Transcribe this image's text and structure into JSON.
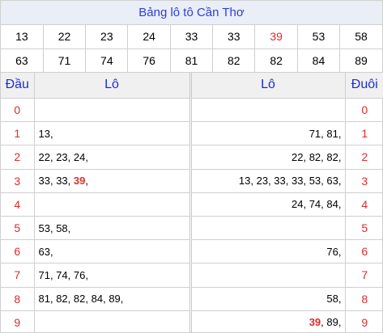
{
  "title": "Bảng lô tô Cần Thơ",
  "numbers_row1": [
    "13",
    "22",
    "23",
    "24",
    "33",
    "33",
    "39",
    "53",
    "58"
  ],
  "numbers_row2": [
    "63",
    "71",
    "74",
    "76",
    "81",
    "82",
    "82",
    "84",
    "89"
  ],
  "highlight_value": "39",
  "headers": {
    "dau": "Đầu",
    "lo_left": "Lô",
    "lo_right": "Lô",
    "duoi": "Đuôi"
  },
  "rows": [
    {
      "dau": "0",
      "lo_left": [],
      "lo_right": [],
      "duoi": "0"
    },
    {
      "dau": "1",
      "lo_left": [
        "13"
      ],
      "lo_right": [
        "71",
        "81"
      ],
      "duoi": "1"
    },
    {
      "dau": "2",
      "lo_left": [
        "22",
        "23",
        "24"
      ],
      "lo_right": [
        "22",
        "82",
        "82"
      ],
      "duoi": "2"
    },
    {
      "dau": "3",
      "lo_left": [
        "33",
        "33",
        "39"
      ],
      "lo_right": [
        "13",
        "23",
        "33",
        "33",
        "53",
        "63"
      ],
      "duoi": "3"
    },
    {
      "dau": "4",
      "lo_left": [],
      "lo_right": [
        "24",
        "74",
        "84"
      ],
      "duoi": "4"
    },
    {
      "dau": "5",
      "lo_left": [
        "53",
        "58"
      ],
      "lo_right": [],
      "duoi": "5"
    },
    {
      "dau": "6",
      "lo_left": [
        "63"
      ],
      "lo_right": [
        "76"
      ],
      "duoi": "6"
    },
    {
      "dau": "7",
      "lo_left": [
        "71",
        "74",
        "76"
      ],
      "lo_right": [],
      "duoi": "7"
    },
    {
      "dau": "8",
      "lo_left": [
        "81",
        "82",
        "82",
        "84",
        "89"
      ],
      "lo_right": [
        "58"
      ],
      "duoi": "8"
    },
    {
      "dau": "9",
      "lo_left": [],
      "lo_right": [
        "39",
        "89"
      ],
      "duoi": "9"
    }
  ],
  "colors": {
    "accent_red": "#e02b2b",
    "header_blue": "#1c2cd9",
    "title_bg": "#e9eef7"
  }
}
